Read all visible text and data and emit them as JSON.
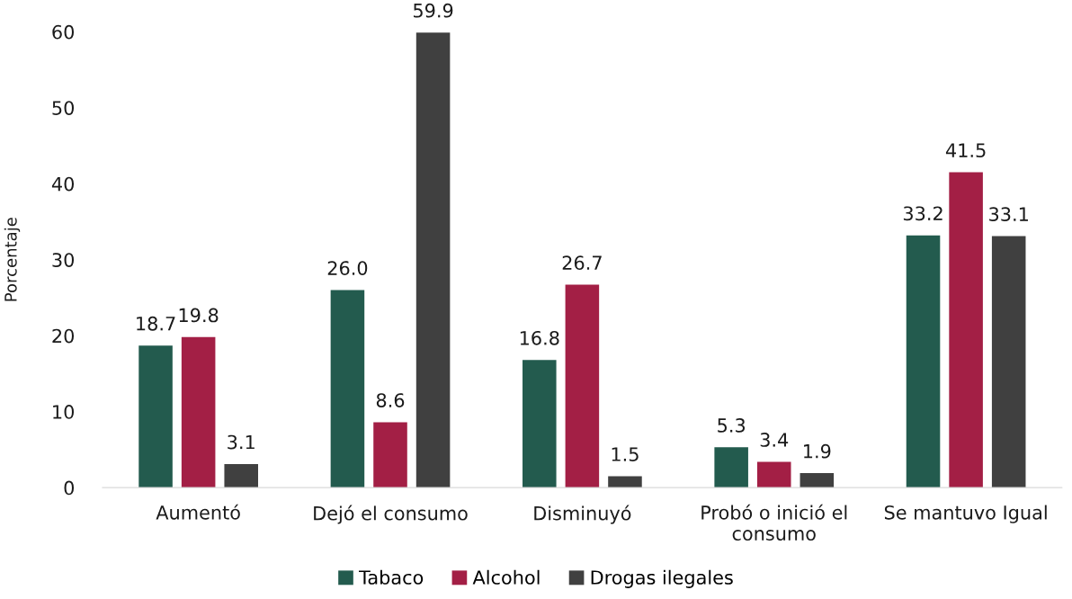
{
  "chart_data": {
    "type": "bar",
    "ylabel": "Porcentaje",
    "categories": [
      "Aumentó",
      "Dejó el consumo",
      "Disminuyó",
      "Probó o inició el\nconsumo",
      "Se mantuvo Igual"
    ],
    "series": [
      {
        "name": "Tabaco",
        "color": "#235b4e",
        "values": [
          18.7,
          26.0,
          16.8,
          5.3,
          33.2
        ],
        "value_labels": [
          "18.7",
          "26.0",
          "16.8",
          "5.3",
          "33.2"
        ]
      },
      {
        "name": "Alcohol",
        "color": "#a31f45",
        "values": [
          19.8,
          8.6,
          26.7,
          3.4,
          41.5
        ],
        "value_labels": [
          "19.8",
          "8.6",
          "26.7",
          "3.4",
          "41.5"
        ]
      },
      {
        "name": "Drogas ilegales",
        "color": "#404040",
        "values": [
          3.1,
          59.9,
          1.5,
          1.9,
          33.1
        ],
        "value_labels": [
          "3.1",
          "59.9",
          "1.5",
          "1.9",
          "33.1"
        ]
      }
    ],
    "ylim": [
      0,
      60
    ],
    "yticks": [
      0,
      10,
      20,
      30,
      40,
      50,
      60
    ],
    "grid": false,
    "legend": "bottom"
  }
}
